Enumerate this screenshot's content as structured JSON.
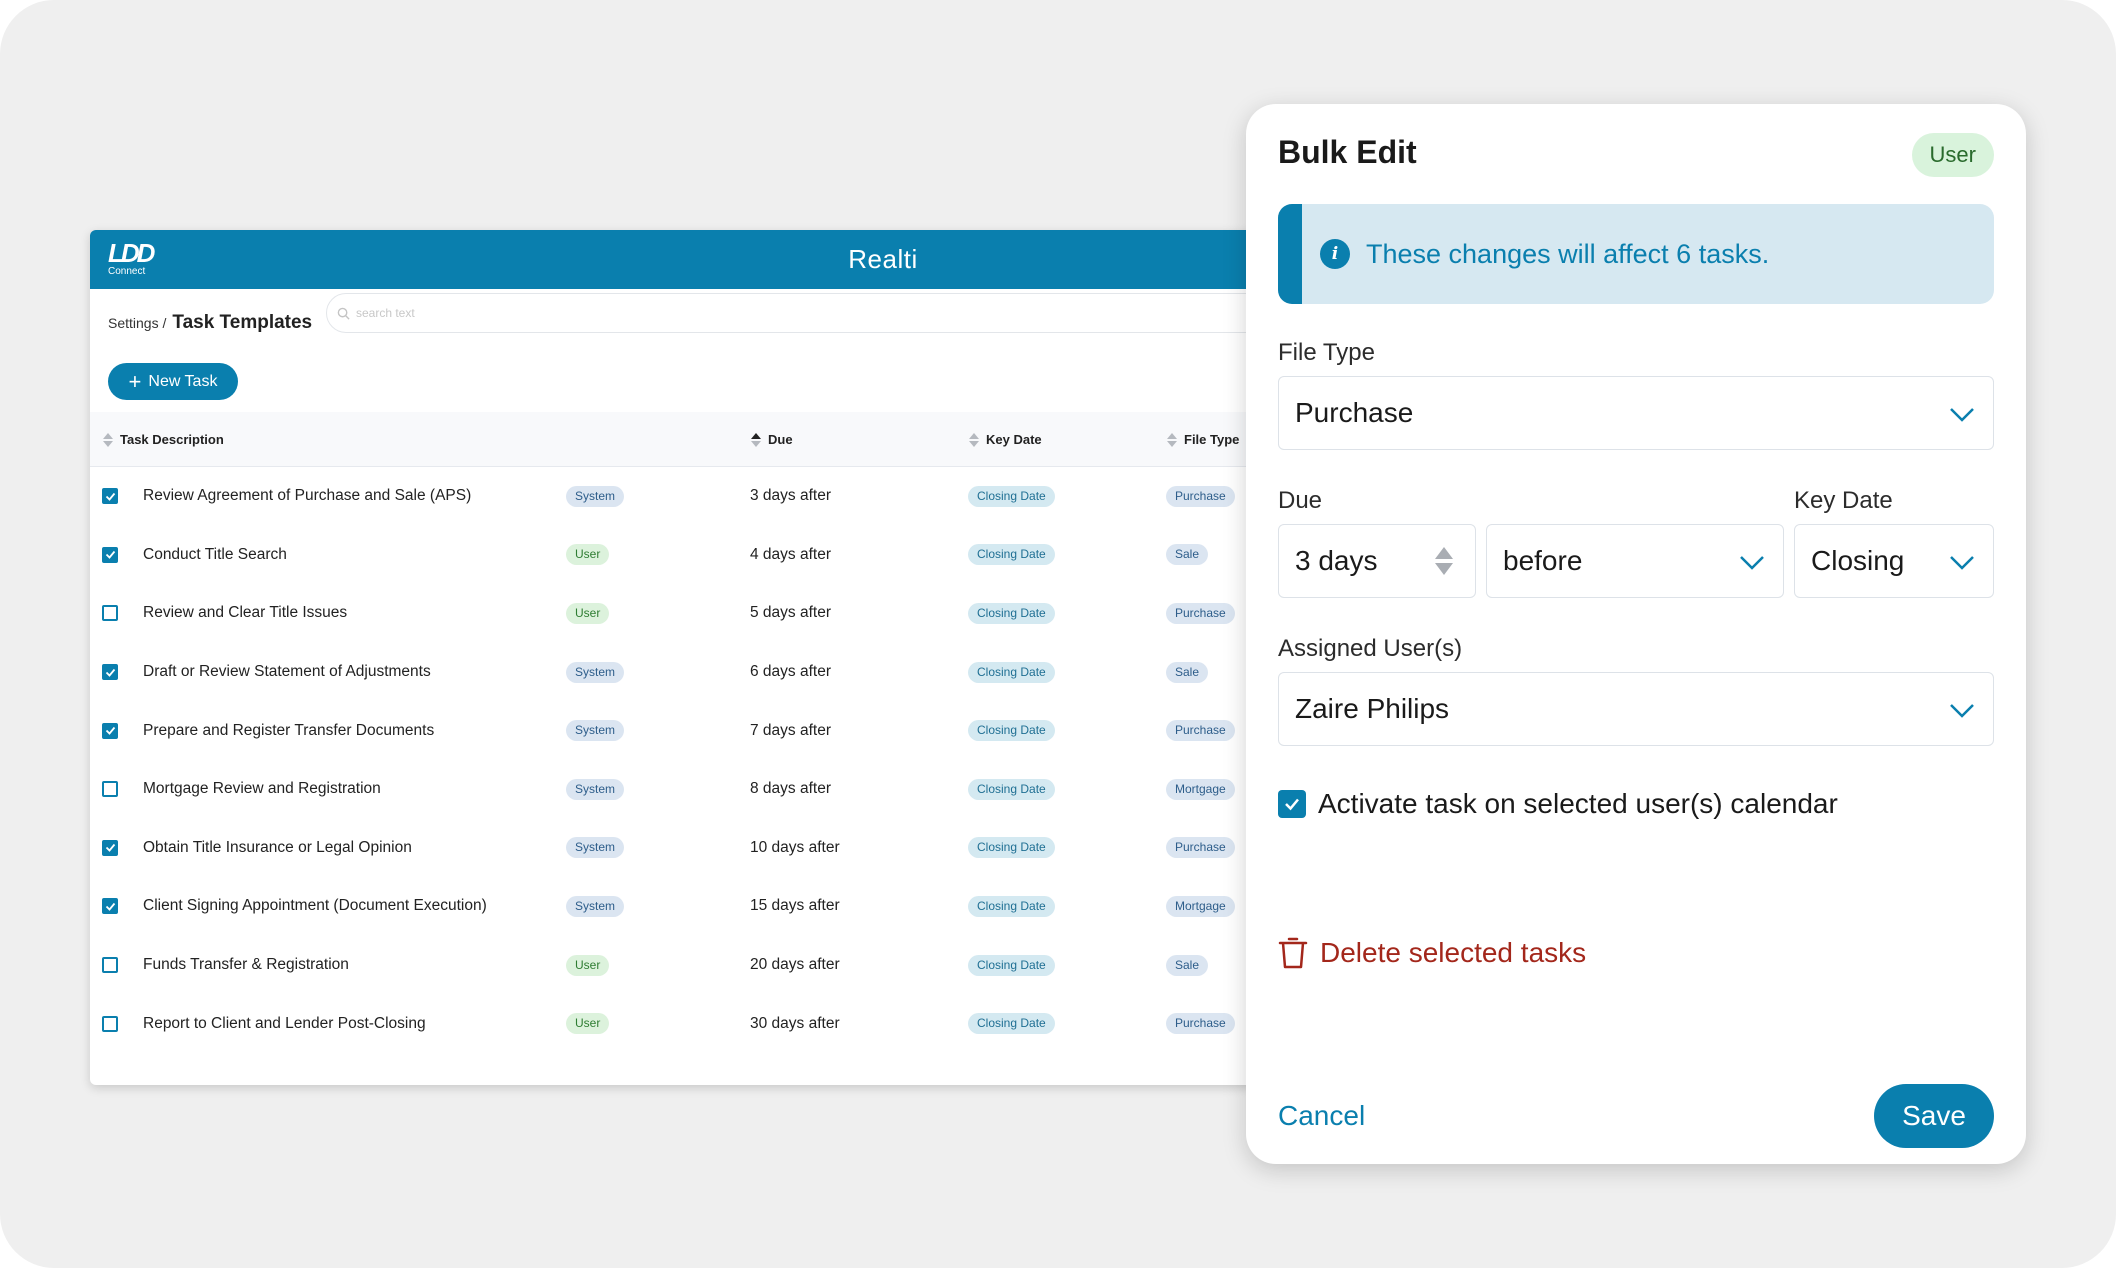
{
  "app": {
    "logo_mark": "LDD",
    "logo_sub": "Connect",
    "title": "Realti"
  },
  "breadcrumb": {
    "parent": "Settings /",
    "current": "Task Templates"
  },
  "search": {
    "placeholder": "search text"
  },
  "new_task_label": "New Task",
  "table": {
    "headers": {
      "task_description": "Task Description",
      "due": "Due",
      "key_date": "Key Date",
      "file_type": "File Type"
    },
    "rows": [
      {
        "checked": true,
        "description": "Review Agreement of Purchase and Sale (APS)",
        "source": "System",
        "due": "3 days after",
        "key_date": "Closing Date",
        "file_type": "Purchase"
      },
      {
        "checked": true,
        "description": "Conduct Title Search",
        "source": "User",
        "due": "4 days after",
        "key_date": "Closing Date",
        "file_type": "Sale"
      },
      {
        "checked": false,
        "description": "Review and Clear Title Issues",
        "source": "User",
        "due": "5 days after",
        "key_date": "Closing Date",
        "file_type": "Purchase"
      },
      {
        "checked": true,
        "description": "Draft or Review Statement of Adjustments",
        "source": "System",
        "due": "6 days after",
        "key_date": "Closing Date",
        "file_type": "Sale"
      },
      {
        "checked": true,
        "description": "Prepare and Register Transfer Documents",
        "source": "System",
        "due": "7 days after",
        "key_date": "Closing Date",
        "file_type": "Purchase"
      },
      {
        "checked": false,
        "description": "Mortgage Review and Registration",
        "source": "System",
        "due": "8 days after",
        "key_date": "Closing Date",
        "file_type": "Mortgage"
      },
      {
        "checked": true,
        "description": "Obtain Title Insurance or Legal Opinion",
        "source": "System",
        "due": "10 days after",
        "key_date": "Closing Date",
        "file_type": "Purchase"
      },
      {
        "checked": true,
        "description": "Client Signing Appointment (Document Execution)",
        "source": "System",
        "due": "15 days after",
        "key_date": "Closing Date",
        "file_type": "Mortgage"
      },
      {
        "checked": false,
        "description": "Funds Transfer & Registration",
        "source": "User",
        "due": "20 days after",
        "key_date": "Closing Date",
        "file_type": "Sale"
      },
      {
        "checked": false,
        "description": "Report to Client and Lender Post-Closing",
        "source": "User",
        "due": "30 days after",
        "key_date": "Closing Date",
        "file_type": "Purchase"
      }
    ]
  },
  "bulk_edit": {
    "title": "Bulk Edit",
    "role_badge": "User",
    "info_message": "These changes will affect 6 tasks.",
    "file_type_label": "File Type",
    "file_type_value": "Purchase",
    "due_label": "Due",
    "due_amount": "3 days",
    "due_direction": "before",
    "key_date_label": "Key Date",
    "key_date_value": "Closing",
    "assigned_label": "Assigned User(s)",
    "assigned_value": "Zaire Philips",
    "activate_label": "Activate task on selected user(s) calendar",
    "activate_checked": true,
    "delete_label": "Delete selected tasks",
    "cancel_label": "Cancel",
    "save_label": "Save"
  },
  "colors": {
    "brand": "#0a7fae",
    "danger": "#a3271b",
    "badge_green_bg": "#d9f3dc",
    "info_bg": "#d6e8f1"
  }
}
